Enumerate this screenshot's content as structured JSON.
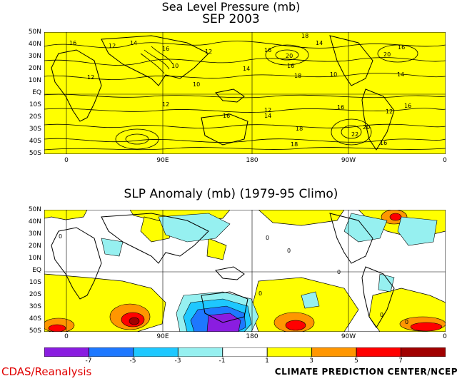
{
  "top_panel": {
    "title": "Sea Level Pressure (mb)",
    "subtitle": "SEP 2003",
    "lat_labels": [
      "50N",
      "40N",
      "30N",
      "20N",
      "10N",
      "EQ",
      "10S",
      "20S",
      "30S",
      "40S",
      "50S"
    ],
    "lon_labels": [
      "0",
      "90E",
      "180",
      "90W",
      "0"
    ],
    "contour_labels": [
      "16",
      "12",
      "14",
      "16",
      "12",
      "18",
      "14",
      "20",
      "16",
      "20",
      "16",
      "14",
      "10",
      "12",
      "16",
      "18",
      "10",
      "14",
      "16",
      "12",
      "14",
      "12",
      "16",
      "12",
      "10",
      "16",
      "18",
      "20",
      "22",
      "18",
      "16"
    ],
    "fill_color": "#ffff00"
  },
  "bottom_panel": {
    "title": "SLP Anomaly (mb) (1979-95 Climo)",
    "lat_labels": [
      "50N",
      "40N",
      "30N",
      "20N",
      "10N",
      "EQ",
      "10S",
      "20S",
      "30S",
      "40S",
      "50S"
    ],
    "lon_labels": [
      "0",
      "90E",
      "180",
      "90W",
      "0"
    ],
    "contour_labels": [
      "0",
      "0",
      "0",
      "0",
      "0",
      "0",
      "0"
    ]
  },
  "colorbar": {
    "colors": [
      "#8a1de0",
      "#1e78ff",
      "#1ec8ff",
      "#96f0f0",
      "#ffffff",
      "#ffff00",
      "#ff9600",
      "#ff0000",
      "#a00000"
    ],
    "labels": [
      "-7",
      "-5",
      "-3",
      "-1",
      "1",
      "3",
      "5",
      "7"
    ]
  },
  "credits": {
    "left": "CDAS/Reanalysis",
    "right": "CLIMATE PREDICTION CENTER/NCEP"
  }
}
